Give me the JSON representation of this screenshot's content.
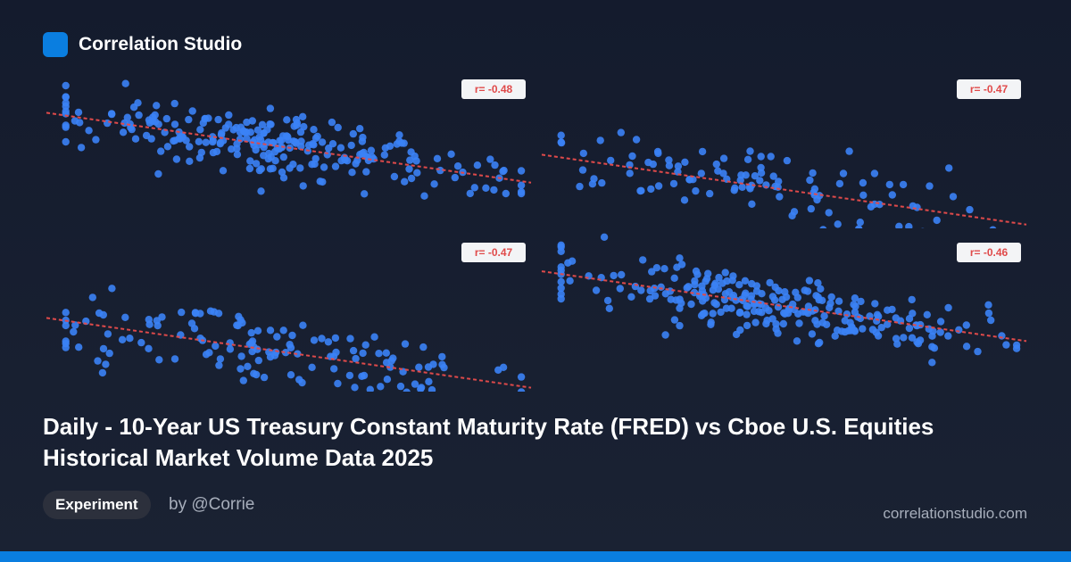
{
  "brand": {
    "name": "Correlation Studio",
    "icon": "app-logo-icon",
    "accent": "#0a7ee0"
  },
  "chart_data": [
    {
      "type": "scatter",
      "title": "",
      "xlabel": "",
      "ylabel": "",
      "grid": false,
      "legend": "none",
      "dot_color": "#3b82f6",
      "trend_color": "#e04a4a",
      "r_label": "r= -0.48",
      "n_points": 250,
      "seed": 17,
      "x_spread": 0.1,
      "y_noise": 0.1,
      "slope": -0.45,
      "intercept": 0.52
    },
    {
      "type": "scatter",
      "title": "",
      "xlabel": "",
      "ylabel": "",
      "grid": false,
      "legend": "none",
      "dot_color": "#3b82f6",
      "trend_color": "#e04a4a",
      "r_label": "r= -0.47",
      "n_points": 110,
      "seed": 41,
      "x_spread": 0.09,
      "y_noise": 0.12,
      "slope": -0.45,
      "intercept": 0.25
    },
    {
      "type": "scatter",
      "title": "",
      "xlabel": "",
      "ylabel": "",
      "grid": false,
      "legend": "none",
      "dot_color": "#3b82f6",
      "trend_color": "#e04a4a",
      "r_label": "r= -0.47",
      "n_points": 140,
      "seed": 73,
      "x_spread": 0.1,
      "y_noise": 0.12,
      "slope": -0.45,
      "intercept": 0.25
    },
    {
      "type": "scatter",
      "title": "",
      "xlabel": "",
      "ylabel": "",
      "grid": false,
      "legend": "none",
      "dot_color": "#3b82f6",
      "trend_color": "#e04a4a",
      "r_label": "r= -0.46",
      "n_points": 250,
      "seed": 97,
      "x_spread": 0.1,
      "y_noise": 0.1,
      "slope": -0.45,
      "intercept": 0.55
    }
  ],
  "title": "Daily - 10-Year US Treasury Constant Maturity Rate (FRED) vs Cboe U.S. Equities Historical Market Volume Data 2025",
  "tag": "Experiment",
  "author": "by @Corrie",
  "site": "correlationstudio.com"
}
